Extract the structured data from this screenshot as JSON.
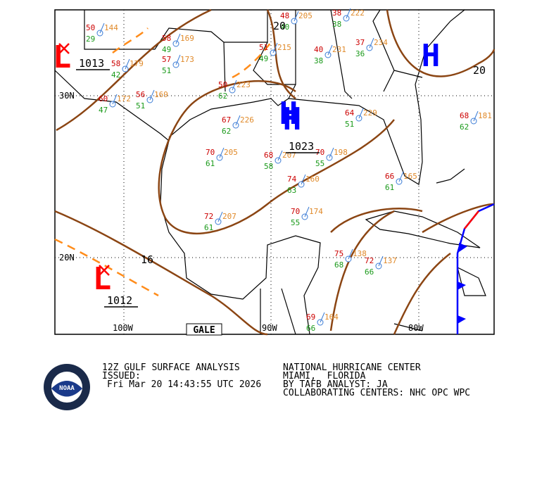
{
  "map": {
    "pressure_centers": [
      {
        "symbol": "L",
        "label": 1013
      },
      {
        "symbol": "H",
        "label": 1023
      },
      {
        "symbol": "L",
        "label": 1012
      },
      {
        "symbol": "H"
      },
      {
        "symbol": "H"
      }
    ],
    "isobar_labels": [
      20,
      20,
      16
    ],
    "grid_labels": [
      "30N",
      "20N",
      "100W",
      "90W",
      "80W"
    ],
    "gale_label": "GALE",
    "stations": [
      {
        "temp": 50,
        "dew": 29,
        "pressure": 144
      },
      {
        "temp": 58,
        "dew": 49,
        "pressure": 169
      },
      {
        "temp": 57,
        "dew": 51,
        "pressure": 173
      },
      {
        "temp": 58,
        "dew": 42,
        "pressure": 179
      },
      {
        "temp": 56,
        "dew": 51,
        "pressure": 169
      },
      {
        "temp": 60,
        "dew": 47,
        "pressure": 172
      },
      {
        "temp": 50,
        "dew": 62,
        "pressure": 223
      },
      {
        "temp": 67,
        "dew": 62,
        "pressure": 226
      },
      {
        "temp": 70,
        "dew": 61,
        "pressure": 205
      },
      {
        "temp": 68,
        "dew": 58,
        "pressure": 207
      },
      {
        "temp": 70,
        "dew": 55,
        "pressure": 198
      },
      {
        "temp": 74,
        "dew": 63,
        "pressure": 160
      },
      {
        "temp": 72,
        "dew": 61,
        "pressure": 207
      },
      {
        "temp": 70,
        "dew": 55,
        "pressure": 174
      },
      {
        "temp": 48,
        "dew": 40,
        "pressure": 205
      },
      {
        "temp": 51,
        "dew": 49,
        "pressure": 215
      },
      {
        "temp": 40,
        "dew": 38,
        "pressure": 231
      },
      {
        "temp": 37,
        "dew": 36,
        "pressure": 234
      },
      {
        "temp": 38,
        "dew": 38,
        "pressure": 222
      },
      {
        "temp": 64,
        "dew": 51,
        "pressure": 229
      },
      {
        "temp": 75,
        "dew": 68,
        "pressure": 138
      },
      {
        "temp": 72,
        "dew": 66,
        "pressure": 137
      },
      {
        "temp": 69,
        "dew": 66,
        "pressure": 164
      },
      {
        "temp": 68,
        "dew": 62,
        "pressure": 181
      },
      {
        "temp": 66,
        "dew": 61,
        "pressure": 165
      }
    ]
  },
  "footer": {
    "logo": "NOAA",
    "title": "12Z GULF SURFACE ANALYSIS",
    "issued_label": "ISSUED:",
    "issued_time": "Fri Mar 20 14:43:55 UTC 2026",
    "center": "NATIONAL HURRICANE CENTER",
    "location": "MIAMI,  FLORIDA",
    "analyst": "BY TAFB ANALYST: JA",
    "collab": "COLLABORATING CENTERS: NHC OPC WPC"
  }
}
